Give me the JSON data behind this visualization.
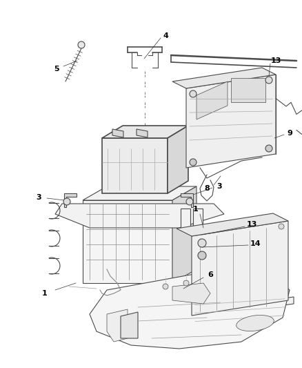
{
  "bg_color": "#ffffff",
  "line_color": "#4a4a4a",
  "label_color": "#000000",
  "fig_width": 4.38,
  "fig_height": 5.33,
  "dpi": 100,
  "gray_fill": "#e8e8e8",
  "gray_fill2": "#d8d8d8",
  "gray_fill3": "#f2f2f2",
  "white_fill": "#fafafa"
}
